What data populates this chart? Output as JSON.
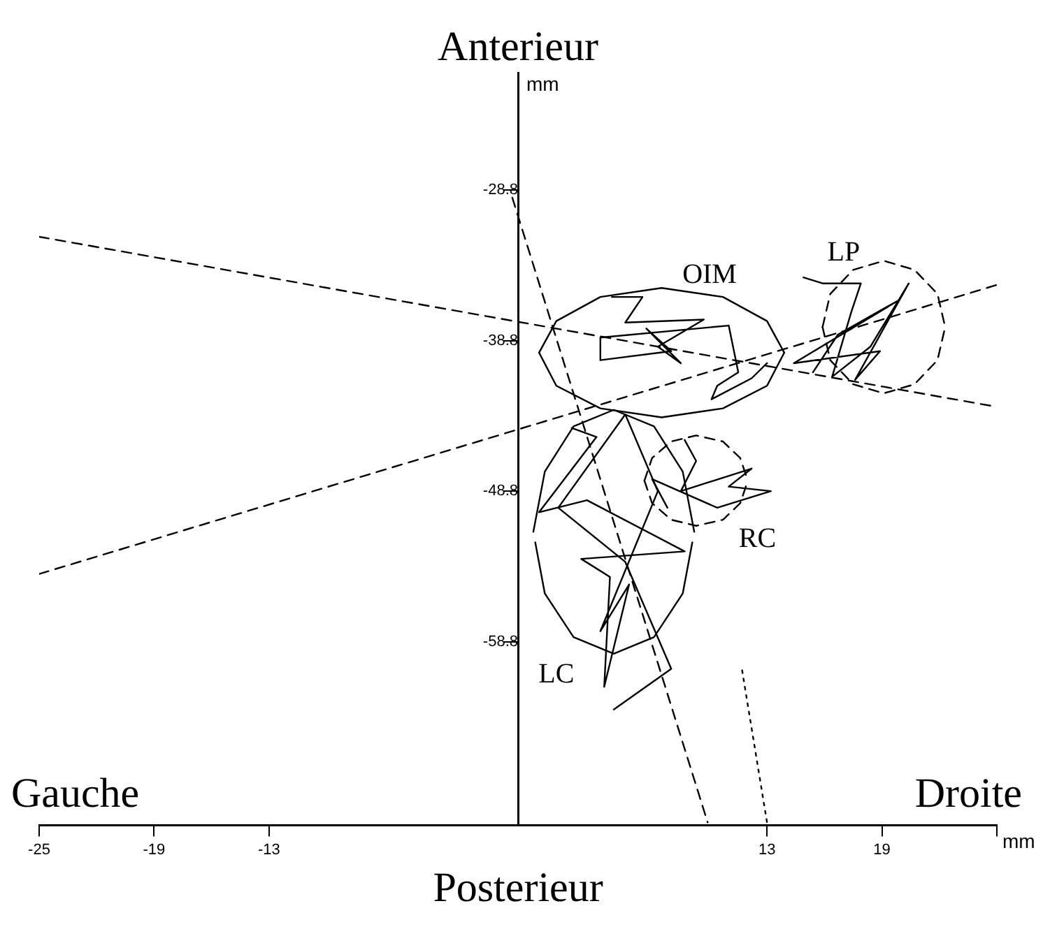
{
  "chart_data": {
    "type": "line",
    "title": "Anterieur",
    "xlabel": "Posterieur",
    "annotations": [
      "Gauche",
      "Droite",
      "mm",
      "mm",
      "OIM",
      "LP",
      "RC",
      "LC"
    ],
    "xlim": [
      -25,
      25
    ],
    "ylim": [
      -71,
      -21
    ],
    "xticks": [
      -25,
      -19,
      -13,
      13,
      19,
      {
        "value": 25,
        "label": null
      }
    ],
    "yticks": [
      -28.8,
      -38.8,
      -48.8,
      -58.8
    ],
    "grid": false,
    "legend": false,
    "marker": "none",
    "series": [
      {
        "color": "#000000",
        "line_style": "dashed",
        "x": [
          -25,
          25
        ],
        "values": [
          -31.9,
          -43.2
        ]
      },
      {
        "color": "#000000",
        "line_style": "dashed",
        "x": [
          -25,
          25
        ],
        "values": [
          -54.3,
          -35.1
        ]
      },
      {
        "color": "#000000",
        "line_style": "dashed",
        "x": [
          -0.3,
          9.9
        ],
        "values": [
          -29.3,
          -70.8
        ]
      },
      {
        "color": "#000000",
        "line_style": "dotted",
        "x": [
          11.7,
          13.0
        ],
        "values": [
          -60.7,
          -70.8
        ]
      },
      {
        "color": "#000000",
        "line_style": "solid",
        "x": [
          1.1,
          2.0,
          4.3,
          7.5,
          10.7,
          13.0,
          13.9
        ],
        "values": [
          -39.6,
          -37.5,
          -35.9,
          -35.3,
          -35.9,
          -37.5,
          -39.6
        ]
      },
      {
        "color": "#000000",
        "line_style": "solid",
        "x": [
          1.1,
          2.0,
          4.3,
          7.5,
          10.7,
          13.0,
          13.9
        ],
        "values": [
          -39.6,
          -41.8,
          -43.3,
          -43.9,
          -43.3,
          -41.8,
          -39.6
        ]
      },
      {
        "color": "#000000",
        "line_style": "dashed",
        "x": [
          15.9,
          16.3,
          17.5,
          19.1,
          20.7,
          21.9,
          22.3
        ],
        "values": [
          -37.9,
          -35.7,
          -34.1,
          -33.5,
          -34.1,
          -35.7,
          -37.9
        ]
      },
      {
        "color": "#000000",
        "line_style": "dashed",
        "x": [
          15.9,
          16.3,
          17.5,
          19.1,
          20.7,
          21.9,
          22.3
        ],
        "values": [
          -37.9,
          -40.1,
          -41.7,
          -42.3,
          -41.7,
          -40.1,
          -37.9
        ]
      },
      {
        "color": "#000000",
        "line_style": "dashed",
        "x": [
          6.6,
          7.0,
          8.0,
          9.3,
          10.7,
          11.6,
          12.0
        ],
        "values": [
          -48.1,
          -46.6,
          -45.5,
          -45.1,
          -45.5,
          -46.6,
          -48.1
        ]
      },
      {
        "color": "#000000",
        "line_style": "dashed",
        "x": [
          6.6,
          7.0,
          8.0,
          9.3,
          10.7,
          11.6,
          12.0
        ],
        "values": [
          -48.1,
          -49.6,
          -50.7,
          -51.1,
          -50.7,
          -49.6,
          -48.1
        ]
      },
      {
        "color": "#000000",
        "line_style": "solid",
        "x": [
          0.8,
          1.4,
          2.9,
          5.0,
          7.1,
          8.6,
          9.2
        ],
        "values": [
          -51.5,
          -47.5,
          -44.5,
          -43.4,
          -44.5,
          -47.5,
          -51.5
        ]
      },
      {
        "color": "#000000",
        "line_style": "solid",
        "x": [
          0.9,
          1.4,
          2.9,
          5.0,
          7.1,
          8.6,
          9.1
        ],
        "values": [
          -52.2,
          -55.6,
          -58.5,
          -59.6,
          -58.5,
          -55.6,
          -52.2
        ]
      },
      {
        "color": "#000000",
        "line_style": "solid",
        "x": [
          4.9,
          6.5,
          5.6,
          9.7,
          7.3,
          8.5,
          6.7,
          8.0,
          4.3,
          4.3,
          11.0,
          11.5,
          10.4,
          10.1,
          12.2,
          13.0
        ],
        "values": [
          -35.9,
          -35.9,
          -37.6,
          -37.4,
          -39.2,
          -40.3,
          -38.0,
          -39.5,
          -40.1,
          -38.6,
          -37.8,
          -40.9,
          -41.8,
          -42.7,
          -41.3,
          -40.3
        ]
      },
      {
        "color": "#000000",
        "line_style": "solid",
        "x": [
          14.9,
          15.9,
          17.9,
          17.4,
          16.4,
          18.4,
          20.4,
          17.6,
          18.9,
          14.4,
          19.9,
          16.7,
          15.4
        ],
        "values": [
          -34.6,
          -35.0,
          -35.0,
          -36.9,
          -41.2,
          -39.2,
          -35.0,
          -41.4,
          -39.5,
          -40.3,
          -36.1,
          -38.4,
          -40.9
        ]
      },
      {
        "color": "#000000",
        "line_style": "solid",
        "x": [
          8.7,
          9.3,
          8.5,
          12.2,
          11.0,
          13.2,
          10.4,
          7.0,
          7.8
        ],
        "values": [
          -45.4,
          -46.8,
          -48.8,
          -47.3,
          -48.5,
          -48.8,
          -49.9,
          -48.0,
          -49.9
        ]
      },
      {
        "color": "#000000",
        "line_style": "solid",
        "x": [
          2.8,
          4.1,
          1.1,
          3.6,
          8.7,
          3.3,
          4.8,
          4.5,
          5.8,
          4.3,
          7.3,
          5.6,
          2.1,
          5.6,
          8.0,
          5.0
        ],
        "values": [
          -44.6,
          -45.2,
          -50.2,
          -49.4,
          -52.8,
          -53.3,
          -54.5,
          -61.8,
          -55.0,
          -58.1,
          -48.8,
          -43.7,
          -49.9,
          -53.5,
          -60.6,
          -63.3
        ]
      }
    ]
  }
}
